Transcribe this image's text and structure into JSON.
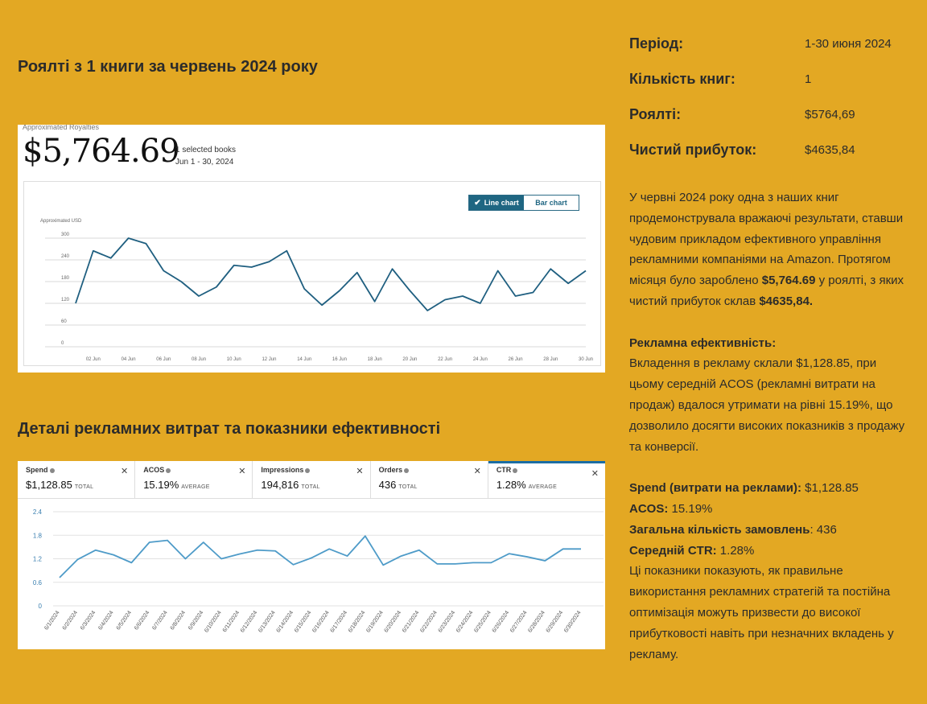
{
  "headings": {
    "royalties": "Роялті з 1 книги за червень 2024 року",
    "ads": "Деталі рекламних витрат та показники ефективності"
  },
  "royalty_card": {
    "label": "Approximated Royalties",
    "amount": "$5,764.69",
    "selected_books": "1 selected books",
    "date_range": "Jun 1 - 30, 2024",
    "toggle_line": "Line chart",
    "toggle_bar": "Bar chart",
    "active_view": "Line chart"
  },
  "ad_metrics": [
    {
      "label": "Spend",
      "value": "$1,128.85",
      "unit": "TOTAL"
    },
    {
      "label": "ACOS",
      "value": "15.19%",
      "unit": "AVERAGE"
    },
    {
      "label": "Impressions",
      "value": "194,816",
      "unit": "TOTAL"
    },
    {
      "label": "Orders",
      "value": "436",
      "unit": "TOTAL"
    },
    {
      "label": "CTR",
      "value": "1.28%",
      "unit": "AVERAGE"
    }
  ],
  "stats": [
    {
      "label": "Період:",
      "value": "1-30 июня 2024"
    },
    {
      "label": "Кількість книг:",
      "value": "1"
    },
    {
      "label": "Роялті:",
      "value": "$5764,69"
    },
    {
      "label": "Чистий прибуток:",
      "value": "$4635,84"
    }
  ],
  "description": {
    "p1_a": "У червні 2024 року одна з наших книг продемонструвала вражаючі результати, ставши чудовим прикладом ефективного управління рекламними компаніями на Amazon. Протягом місяця було зароблено ",
    "p1_b": "$5,764.69",
    "p1_c": " у роялті, з яких чистий прибуток склав ",
    "p1_d": "$4635,84.",
    "ads_heading": "Рекламна ефективність:",
    "ads_text": "Вкладення в рекламу склали $1,128.85, при цьому середній ACOS (рекламні витрати на продаж) вдалося утримати на рівні 15.19%, що дозволило досягти високих показників з продажу та конверсії.",
    "spend_label": "Spend (витрати на реклами):",
    "spend_value": " $1,128.85",
    "acos_label": "ACOS:",
    "acos_value": " 15.19%",
    "orders_label": "Загальна кількість замовлень",
    "orders_value": ": 436",
    "ctr_label": "Середній CTR:",
    "ctr_value": " 1.28%",
    "closing": "Ці показники показують, як правильне використання рекламних стратегій та постійна оптимізація можуть призвести до високої прибутковості навіть при незначних вкладень у рекламу."
  },
  "chart_data": [
    {
      "type": "line",
      "ylabel": "Approximated USD",
      "ylim": [
        0,
        300
      ],
      "y_ticks": [
        "0",
        "60",
        "120",
        "180",
        "240",
        "300"
      ],
      "x_tick_labels": [
        "02 Jun",
        "04 Jun",
        "06 Jun",
        "08 Jun",
        "10 Jun",
        "12 Jun",
        "14 Jun",
        "16 Jun",
        "18 Jun",
        "20 Jun",
        "22 Jun",
        "24 Jun",
        "26 Jun",
        "28 Jun",
        "30 Jun"
      ],
      "x": [
        1,
        2,
        3,
        4,
        5,
        6,
        7,
        8,
        9,
        10,
        11,
        12,
        13,
        14,
        15,
        16,
        17,
        18,
        19,
        20,
        21,
        22,
        23,
        24,
        25,
        26,
        27,
        28,
        29,
        30
      ],
      "values": [
        120,
        265,
        245,
        300,
        285,
        210,
        180,
        140,
        165,
        225,
        220,
        235,
        265,
        160,
        115,
        155,
        205,
        125,
        215,
        155,
        100,
        130,
        140,
        120,
        210,
        140,
        150,
        215,
        175,
        210
      ],
      "color": "#1f5f80"
    },
    {
      "type": "line",
      "ylim": [
        0,
        2.4
      ],
      "y_ticks": [
        "0",
        "0.6",
        "1.2",
        "1.8",
        "2.4"
      ],
      "x": [
        "6/1/2024",
        "6/2/2024",
        "6/3/2024",
        "6/4/2024",
        "6/5/2024",
        "6/6/2024",
        "6/7/2024",
        "6/8/2024",
        "6/9/2024",
        "6/10/2024",
        "6/11/2024",
        "6/12/2024",
        "6/13/2024",
        "6/14/2024",
        "6/15/2024",
        "6/16/2024",
        "6/17/2024",
        "6/18/2024",
        "6/19/2024",
        "6/20/2024",
        "6/21/2024",
        "6/22/2024",
        "6/23/2024",
        "6/24/2024",
        "6/25/2024",
        "6/26/2024",
        "6/27/2024",
        "6/28/2024",
        "6/29/2024",
        "6/30/2024"
      ],
      "values": [
        0.72,
        1.18,
        1.42,
        1.3,
        1.1,
        1.62,
        1.67,
        1.2,
        1.62,
        1.2,
        1.32,
        1.42,
        1.4,
        1.05,
        1.22,
        1.45,
        1.27,
        1.78,
        1.04,
        1.27,
        1.42,
        1.07,
        1.07,
        1.1,
        1.1,
        1.33,
        1.25,
        1.15,
        1.45,
        1.45
      ],
      "color": "#4e9bc8"
    }
  ]
}
